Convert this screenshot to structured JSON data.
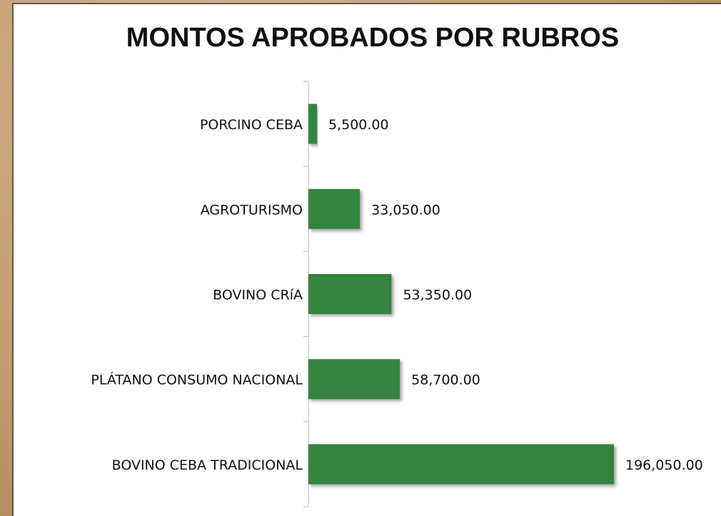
{
  "chart_data": {
    "type": "bar",
    "orientation": "horizontal",
    "title": "MONTOS APROBADOS POR RUBROS",
    "categories": [
      "PORCINO CEBA",
      "AGROTURISMO",
      "BOVINO CRíA",
      "PLÁTANO CONSUMO NACIONAL",
      "BOVINO CEBA TRADICIONAL"
    ],
    "values": [
      5500,
      33050,
      53350,
      58700,
      196050
    ],
    "value_labels": [
      "5,500.00",
      "33,050.00",
      "53,350.00",
      "58,700.00",
      "196,050.00"
    ],
    "color": "#36833f"
  }
}
